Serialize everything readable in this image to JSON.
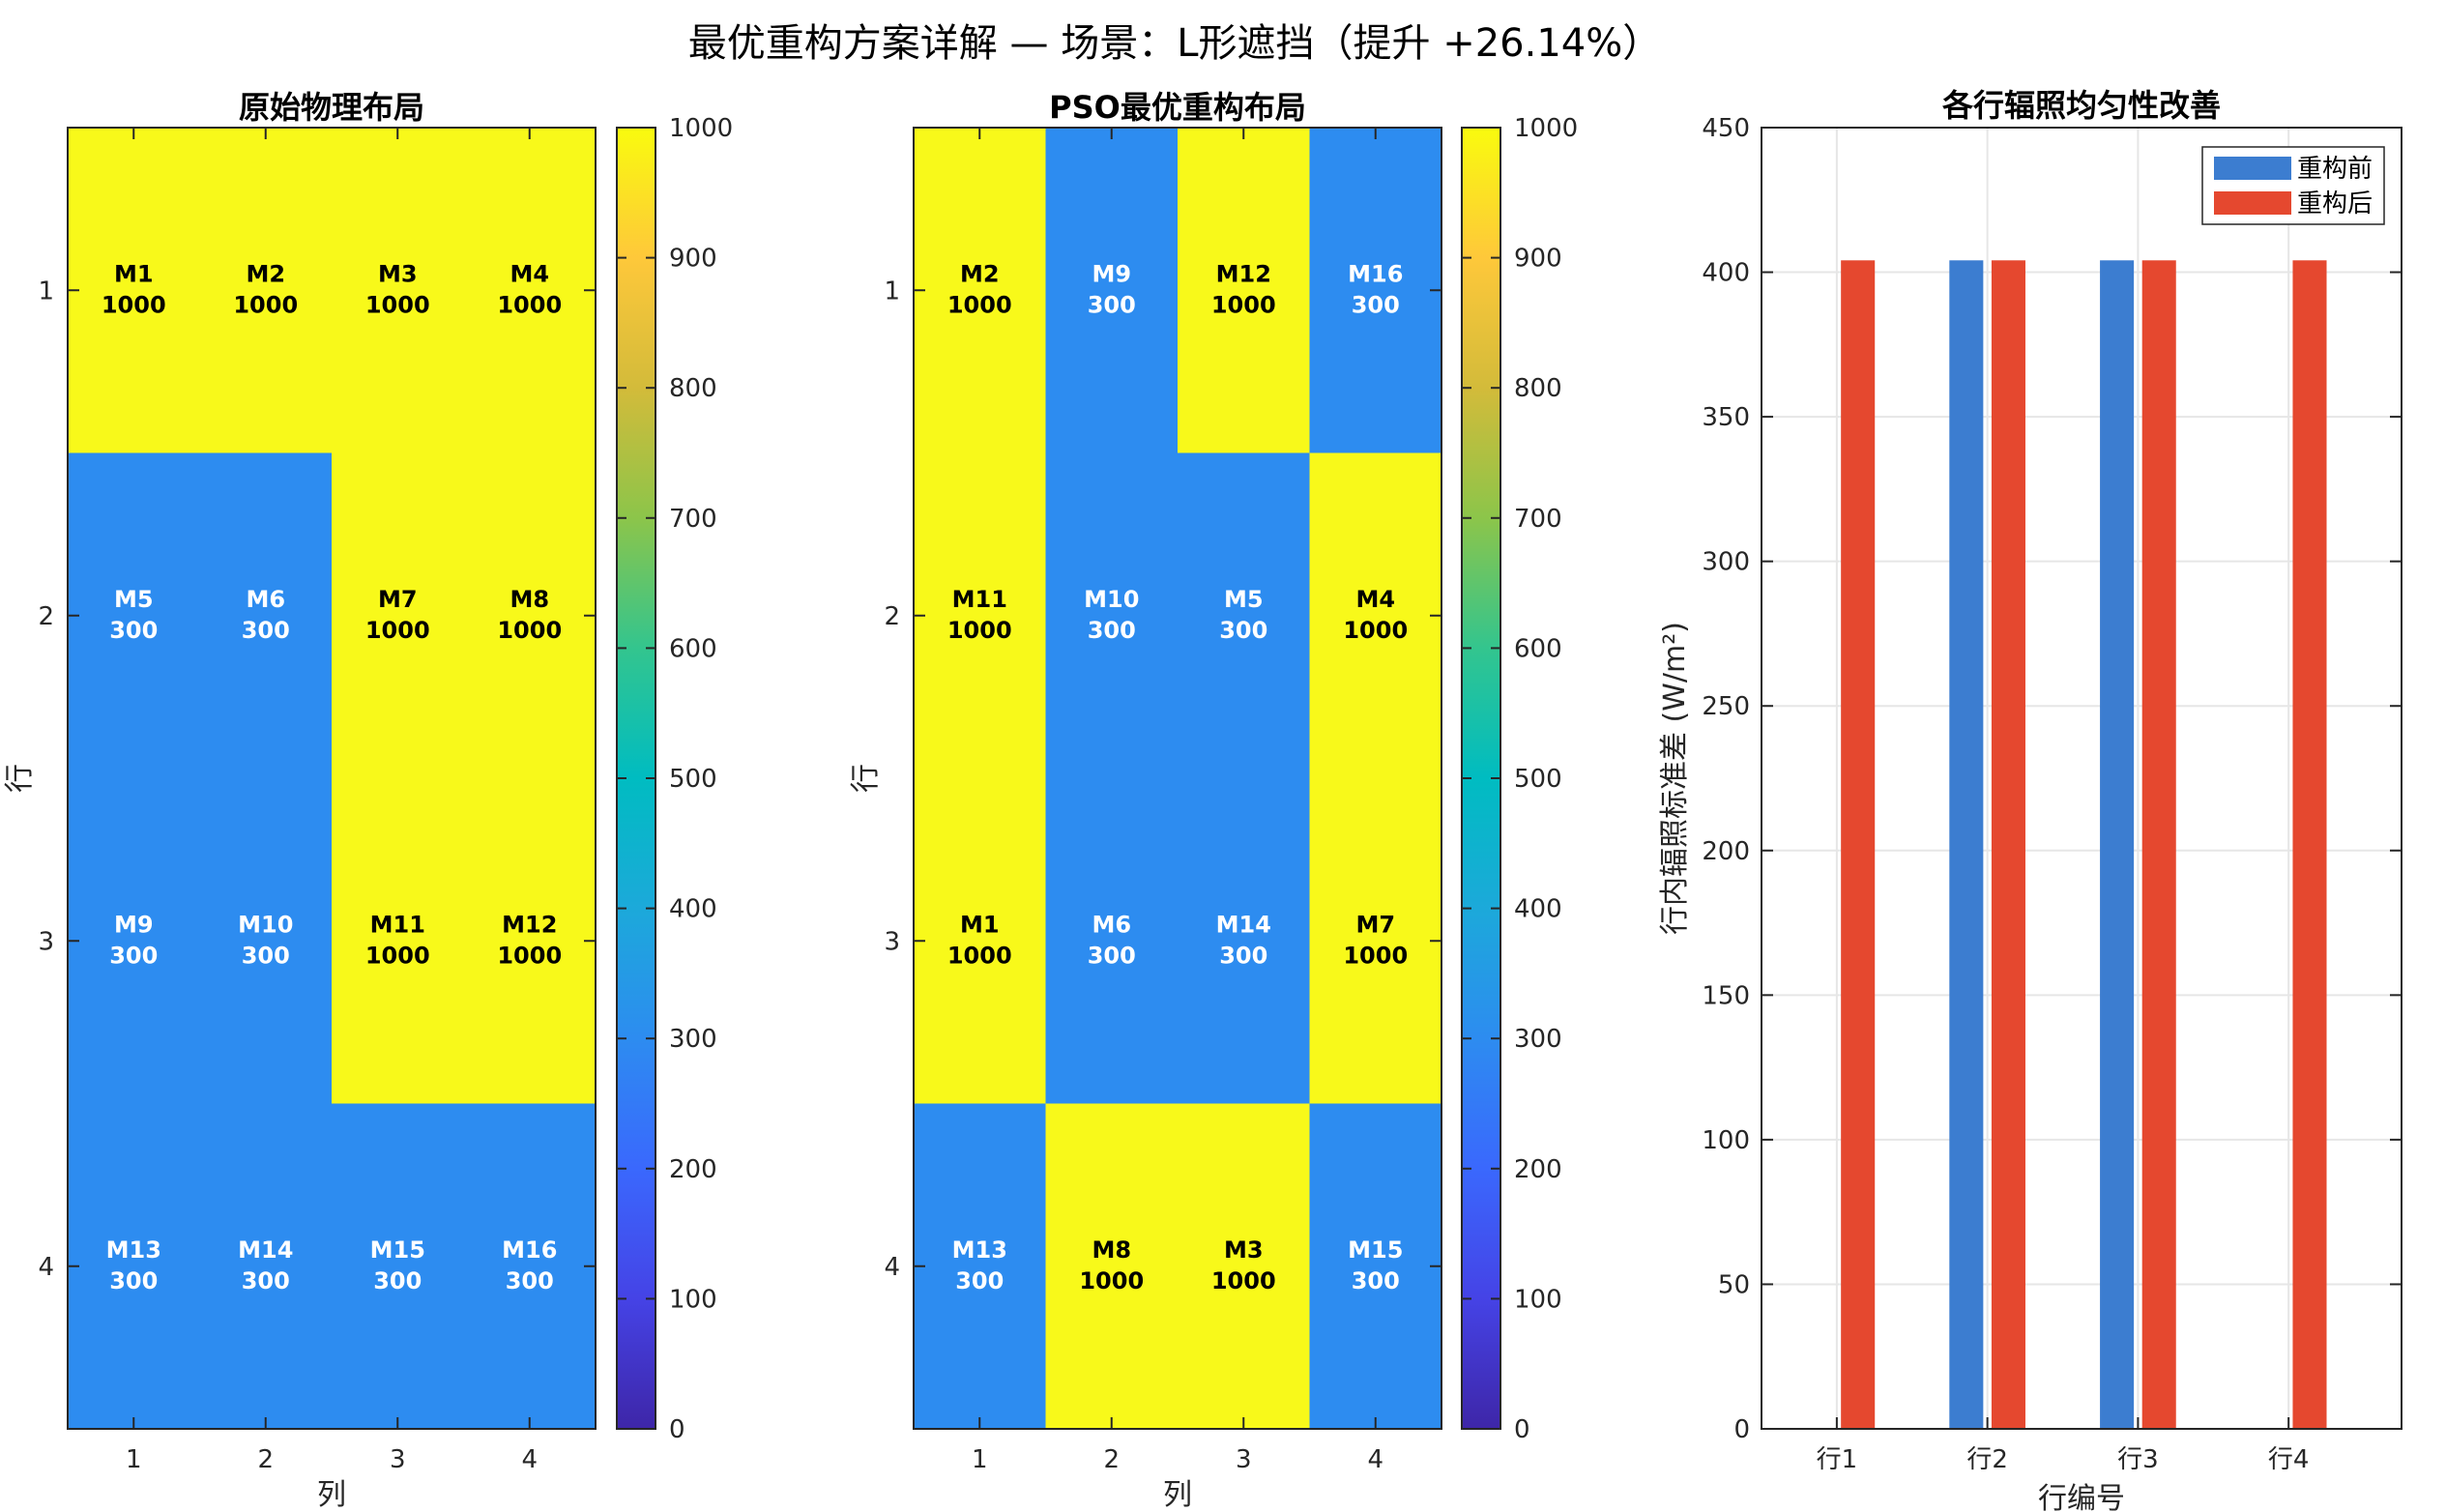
{
  "figure_title": "最优重构方案详解 — 场景：L形遮挡（提升 +26.14%）",
  "colors": {
    "yellow": "#f8f91a",
    "blue": "#2d8cf0",
    "before": "#3c7dd0",
    "after": "#e5482f",
    "axis": "#262626",
    "grid": "#e6e6e6"
  },
  "chart_data": [
    {
      "type": "heatmap",
      "title": "原始物理布局",
      "xlabel": "列",
      "ylabel": "行",
      "x_ticks": [
        "1",
        "2",
        "3",
        "4"
      ],
      "y_ticks": [
        "1",
        "2",
        "3",
        "4"
      ],
      "colorbar": {
        "min": 0,
        "max": 1000,
        "ticks": [
          "0",
          "100",
          "200",
          "300",
          "400",
          "500",
          "600",
          "700",
          "800",
          "900",
          "1000"
        ]
      },
      "cells": [
        [
          {
            "name": "M1",
            "value": 1000
          },
          {
            "name": "M2",
            "value": 1000
          },
          {
            "name": "M3",
            "value": 1000
          },
          {
            "name": "M4",
            "value": 1000
          }
        ],
        [
          {
            "name": "M5",
            "value": 300
          },
          {
            "name": "M6",
            "value": 300
          },
          {
            "name": "M7",
            "value": 1000
          },
          {
            "name": "M8",
            "value": 1000
          }
        ],
        [
          {
            "name": "M9",
            "value": 300
          },
          {
            "name": "M10",
            "value": 300
          },
          {
            "name": "M11",
            "value": 1000
          },
          {
            "name": "M12",
            "value": 1000
          }
        ],
        [
          {
            "name": "M13",
            "value": 300
          },
          {
            "name": "M14",
            "value": 300
          },
          {
            "name": "M15",
            "value": 300
          },
          {
            "name": "M16",
            "value": 300
          }
        ]
      ]
    },
    {
      "type": "heatmap",
      "title": "PSO最优重构布局",
      "xlabel": "列",
      "ylabel": "行",
      "x_ticks": [
        "1",
        "2",
        "3",
        "4"
      ],
      "y_ticks": [
        "1",
        "2",
        "3",
        "4"
      ],
      "colorbar": {
        "min": 0,
        "max": 1000,
        "ticks": [
          "0",
          "100",
          "200",
          "300",
          "400",
          "500",
          "600",
          "700",
          "800",
          "900",
          "1000"
        ]
      },
      "cells": [
        [
          {
            "name": "M2",
            "value": 1000
          },
          {
            "name": "M9",
            "value": 300
          },
          {
            "name": "M12",
            "value": 1000
          },
          {
            "name": "M16",
            "value": 300
          }
        ],
        [
          {
            "name": "M11",
            "value": 1000
          },
          {
            "name": "M10",
            "value": 300
          },
          {
            "name": "M5",
            "value": 300
          },
          {
            "name": "M4",
            "value": 1000
          }
        ],
        [
          {
            "name": "M1",
            "value": 1000
          },
          {
            "name": "M6",
            "value": 300
          },
          {
            "name": "M14",
            "value": 300
          },
          {
            "name": "M7",
            "value": 1000
          }
        ],
        [
          {
            "name": "M13",
            "value": 300
          },
          {
            "name": "M8",
            "value": 1000
          },
          {
            "name": "M3",
            "value": 1000
          },
          {
            "name": "M15",
            "value": 300
          }
        ]
      ]
    },
    {
      "type": "bar",
      "title": "各行辐照均匀性改善",
      "xlabel": "行编号",
      "ylabel": "行内辐照标准差 (W/m²)",
      "categories": [
        "行1",
        "行2",
        "行3",
        "行4"
      ],
      "ylim": [
        0,
        450
      ],
      "y_ticks": [
        "0",
        "50",
        "100",
        "150",
        "200",
        "250",
        "300",
        "350",
        "400",
        "450"
      ],
      "grid": true,
      "legend_position": "top-right",
      "series": [
        {
          "name": "重构前",
          "values": [
            0,
            404.1,
            404.1,
            0
          ]
        },
        {
          "name": "重构后",
          "values": [
            404.1,
            404.1,
            404.1,
            404.1
          ]
        }
      ]
    }
  ]
}
